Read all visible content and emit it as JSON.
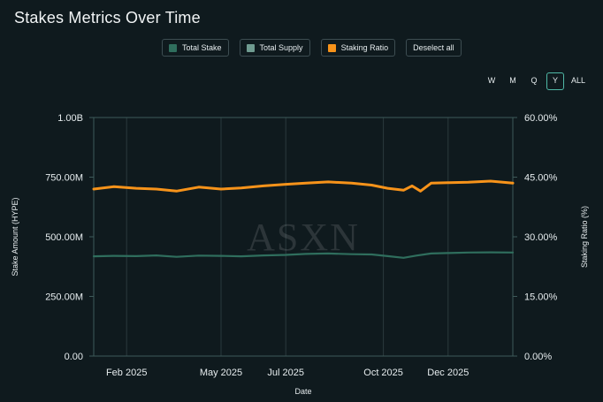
{
  "title": "Stakes Metrics Over Time",
  "legend": [
    {
      "label": "Total Stake",
      "color": "#2f6e5d"
    },
    {
      "label": "Total Supply",
      "color": "#6f9b90"
    },
    {
      "label": "Staking Ratio",
      "color": "#f7931a"
    }
  ],
  "deselect_label": "Deselect all",
  "ranges": [
    {
      "label": "W",
      "active": false
    },
    {
      "label": "M",
      "active": false
    },
    {
      "label": "Q",
      "active": false
    },
    {
      "label": "Y",
      "active": true
    },
    {
      "label": "ALL",
      "active": false
    }
  ],
  "watermark": "ASXN",
  "chart_data": {
    "type": "line",
    "xlabel": "Date",
    "ylabel_left": "Stake Amount (HYPE)",
    "ylabel_right": "Staking Ratio (%)",
    "x_range": [
      "2025-01-01",
      "2026-01-31"
    ],
    "x_ticks": [
      {
        "date": "2025-02-01",
        "label": "Feb 2025"
      },
      {
        "date": "2025-05-01",
        "label": "May 2025"
      },
      {
        "date": "2025-07-01",
        "label": "Jul 2025"
      },
      {
        "date": "2025-10-01",
        "label": "Oct 2025"
      },
      {
        "date": "2025-12-01",
        "label": "Dec 2025"
      }
    ],
    "y_left": {
      "ylim": [
        0,
        1000000000
      ],
      "ticks": [
        "0.00",
        "250.00M",
        "500.00M",
        "750.00M",
        "1.00B"
      ]
    },
    "y_right": {
      "ylim": [
        0,
        60
      ],
      "ticks": [
        "0.00%",
        "15.00%",
        "30.00%",
        "45.00%",
        "60.00%"
      ]
    },
    "grid": "vertical",
    "series": [
      {
        "name": "Total Stake",
        "axis": "left",
        "color": "#2f6e5d",
        "x": [
          "2025-01-01",
          "2025-01-20",
          "2025-02-10",
          "2025-03-01",
          "2025-03-20",
          "2025-04-10",
          "2025-05-01",
          "2025-05-20",
          "2025-06-10",
          "2025-07-01",
          "2025-07-20",
          "2025-08-10",
          "2025-09-01",
          "2025-09-20",
          "2025-10-05",
          "2025-10-20",
          "2025-11-01",
          "2025-11-15",
          "2025-12-01",
          "2025-12-20",
          "2026-01-10",
          "2026-01-31"
        ],
        "values": [
          418000000,
          420000000,
          419000000,
          422000000,
          416000000,
          421000000,
          420000000,
          418000000,
          422000000,
          424000000,
          428000000,
          430000000,
          427000000,
          426000000,
          419000000,
          412000000,
          421000000,
          430000000,
          432000000,
          434000000,
          435000000,
          434000000
        ]
      },
      {
        "name": "Staking Ratio",
        "axis": "right",
        "color": "#f7931a",
        "x": [
          "2025-01-01",
          "2025-01-20",
          "2025-02-10",
          "2025-03-01",
          "2025-03-20",
          "2025-04-10",
          "2025-05-01",
          "2025-05-20",
          "2025-06-10",
          "2025-07-01",
          "2025-07-20",
          "2025-08-10",
          "2025-09-01",
          "2025-09-20",
          "2025-10-05",
          "2025-10-20",
          "2025-10-28",
          "2025-11-05",
          "2025-11-15",
          "2025-12-01",
          "2025-12-20",
          "2026-01-10",
          "2026-01-31"
        ],
        "values": [
          42.0,
          42.6,
          42.2,
          42.0,
          41.5,
          42.5,
          42.0,
          42.3,
          42.8,
          43.2,
          43.5,
          43.8,
          43.5,
          43.0,
          42.2,
          41.7,
          42.8,
          41.5,
          43.5,
          43.6,
          43.7,
          44.0,
          43.5
        ]
      }
    ]
  }
}
